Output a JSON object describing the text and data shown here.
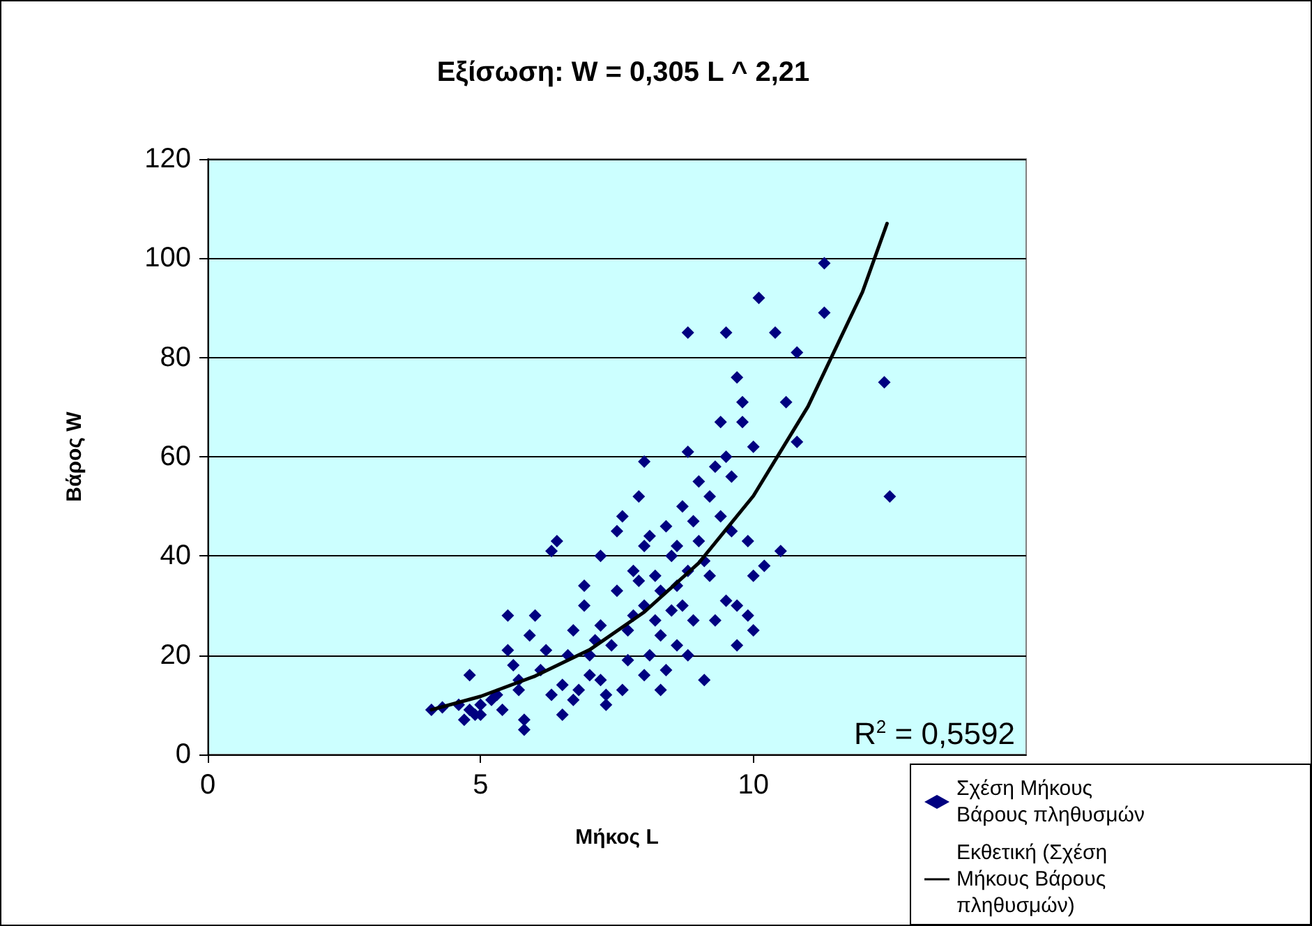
{
  "chart_data": {
    "type": "scatter",
    "title": "Εξίσωση: W = 0,305 L ^ 2,21",
    "xlabel": "Μήκος L",
    "ylabel": "Βάρος W",
    "annotations": [
      "R$^{2}$ = 0,5592"
    ],
    "xlim": [
      0,
      15
    ],
    "xticks": [
      0,
      5,
      10
    ],
    "ylim": [
      0,
      120
    ],
    "yticks": [
      0,
      20,
      40,
      60,
      80,
      100,
      120
    ],
    "grid": "y",
    "legend": "bottom right",
    "marker": "diamond",
    "series": [
      {
        "name": "Σχέση Μήκους Βάρους πληθυσμών",
        "color": "#000080",
        "x": [
          4.1,
          4.3,
          4.6,
          4.7,
          4.8,
          4.9,
          4.8,
          5.0,
          5.0,
          5.2,
          5.3,
          5.4,
          5.5,
          5.5,
          5.6,
          5.7,
          5.7,
          5.8,
          5.8,
          5.9,
          6.0,
          6.1,
          6.2,
          6.3,
          6.4,
          6.3,
          6.5,
          6.5,
          6.6,
          6.7,
          6.7,
          6.8,
          6.9,
          6.9,
          7.0,
          7.0,
          7.1,
          7.2,
          7.2,
          7.2,
          7.3,
          7.3,
          7.4,
          7.5,
          7.5,
          7.6,
          7.6,
          7.7,
          7.7,
          7.8,
          7.8,
          7.9,
          7.9,
          8.0,
          8.0,
          8.0,
          8.0,
          8.1,
          8.1,
          8.2,
          8.2,
          8.3,
          8.3,
          8.3,
          8.4,
          8.4,
          8.5,
          8.5,
          8.6,
          8.6,
          8.7,
          8.7,
          8.8,
          8.8,
          8.8,
          8.8,
          8.9,
          8.9,
          9.0,
          9.0,
          9.1,
          9.1,
          9.2,
          9.2,
          9.3,
          9.3,
          9.4,
          9.4,
          9.5,
          9.5,
          9.5,
          9.6,
          9.6,
          9.7,
          9.7,
          9.7,
          9.8,
          9.8,
          9.9,
          9.9,
          10.0,
          10.0,
          10.1,
          10.2,
          10.4,
          10.5,
          10.6,
          10.8,
          10.8,
          11.3,
          11.3,
          12.4,
          12.5,
          10.0,
          8.6
        ],
        "values": [
          9,
          9.5,
          10,
          7,
          9,
          8,
          16,
          10,
          8,
          11,
          12,
          9,
          21,
          28,
          18,
          15,
          13,
          7,
          5,
          24,
          28,
          17,
          21,
          41,
          43,
          12,
          14,
          8,
          20,
          11,
          25,
          13,
          30,
          34,
          16,
          20,
          23,
          40,
          15,
          26,
          10,
          12,
          22,
          33,
          45,
          48,
          13,
          19,
          25,
          28,
          37,
          35,
          52,
          59,
          42,
          30,
          16,
          20,
          44,
          36,
          27,
          33,
          24,
          13,
          46,
          17,
          40,
          29,
          42,
          22,
          50,
          30,
          85,
          61,
          37,
          20,
          47,
          27,
          55,
          43,
          39,
          15,
          52,
          36,
          58,
          27,
          67,
          48,
          85,
          60,
          31,
          56,
          45,
          76,
          30,
          22,
          71,
          67,
          43,
          28,
          62,
          36,
          92,
          38,
          85,
          41,
          71,
          81,
          63,
          99,
          89,
          75,
          52,
          25,
          34
        ]
      },
      {
        "name": "Εκθετική (Σχέση Μήκους Βάρους πληθυσμών)",
        "type": "line",
        "color": "#000000",
        "marker": "none",
        "line_style": "solid",
        "x": [
          4.1,
          5,
          6,
          7,
          8,
          9,
          10,
          11,
          12,
          12.45
        ],
        "values": [
          9,
          11.7,
          15.8,
          21.1,
          28.7,
          38.6,
          52.1,
          70.1,
          93.2,
          107
        ]
      }
    ]
  }
}
